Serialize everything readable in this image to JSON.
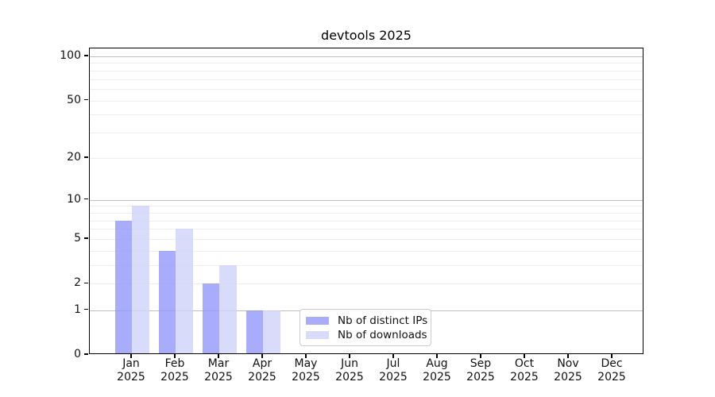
{
  "chart_data": {
    "type": "bar",
    "title": "devtools 2025",
    "scale": "log1p",
    "categories": [
      "Jan",
      "Feb",
      "Mar",
      "Apr",
      "May",
      "Jun",
      "Jul",
      "Aug",
      "Sep",
      "Oct",
      "Nov",
      "Dec"
    ],
    "category_year": "2025",
    "series": [
      {
        "name": "Nb of distinct IPs",
        "color": "rgba(148,151,249,0.8)",
        "values": [
          7,
          4,
          2,
          1,
          0,
          0,
          0,
          0,
          0,
          0,
          0,
          0
        ]
      },
      {
        "name": "Nb of downloads",
        "color": "rgba(208,210,249,0.8)",
        "values": [
          9,
          6,
          3,
          1,
          0,
          0,
          0,
          0,
          0,
          0,
          0,
          0
        ]
      }
    ],
    "yticks": [
      0,
      1,
      2,
      5,
      10,
      20,
      50,
      100
    ],
    "major_gridlines": [
      1,
      10,
      100
    ],
    "minor_gridlines": [
      2,
      3,
      4,
      5,
      6,
      7,
      8,
      9,
      20,
      30,
      40,
      50,
      60,
      70,
      80,
      90
    ],
    "ylim": [
      0,
      113
    ],
    "grid_major_color": "#bdbdbd",
    "grid_minor_color": "#ededed",
    "legend_position": "inside-bottom-center",
    "xlabel": "",
    "ylabel": ""
  }
}
